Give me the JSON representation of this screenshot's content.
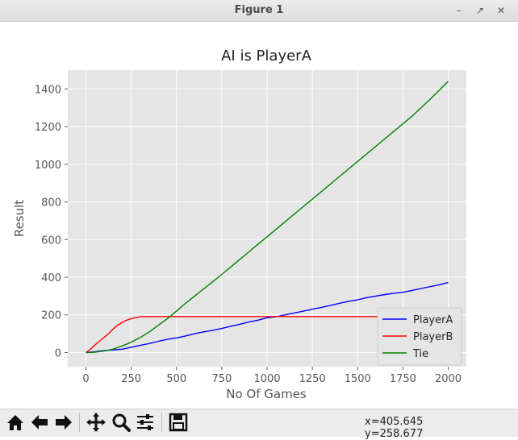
{
  "window": {
    "title": "Figure 1"
  },
  "toolbar": {
    "x_readout": "x=405.645",
    "y_readout": "y=258.677"
  },
  "chart_data": {
    "type": "line",
    "title": "AI is PlayerA",
    "xlabel": "No Of Games",
    "ylabel": "Result",
    "xlim": [
      -100,
      2100
    ],
    "ylim": [
      -75,
      1500
    ],
    "xticks": [
      0,
      250,
      500,
      750,
      1000,
      1250,
      1500,
      1750,
      2000
    ],
    "yticks": [
      0,
      200,
      400,
      600,
      800,
      1000,
      1200,
      1400
    ],
    "grid": true,
    "background": "#e5e5e5",
    "legend_position": "lower-right",
    "series": [
      {
        "name": "PlayerA",
        "color": "#0000ff",
        "x": [
          0,
          50,
          100,
          150,
          200,
          250,
          300,
          350,
          400,
          450,
          500,
          550,
          600,
          650,
          700,
          750,
          800,
          850,
          900,
          950,
          1000,
          1050,
          1100,
          1150,
          1200,
          1250,
          1300,
          1350,
          1400,
          1450,
          1500,
          1550,
          1600,
          1650,
          1700,
          1750,
          1800,
          1850,
          1900,
          1950,
          2000
        ],
        "y": [
          0,
          4,
          10,
          14,
          18,
          28,
          38,
          48,
          60,
          70,
          78,
          88,
          100,
          110,
          118,
          128,
          140,
          150,
          162,
          172,
          185,
          190,
          200,
          210,
          220,
          230,
          240,
          250,
          262,
          272,
          280,
          292,
          300,
          308,
          315,
          320,
          330,
          340,
          350,
          360,
          372
        ]
      },
      {
        "name": "PlayerB",
        "color": "#ff0000",
        "x": [
          0,
          25,
          50,
          75,
          100,
          125,
          150,
          175,
          200,
          225,
          250,
          275,
          300,
          350,
          400,
          500,
          750,
          1000,
          1250,
          1500,
          1750,
          2000
        ],
        "y": [
          0,
          18,
          40,
          60,
          80,
          100,
          125,
          145,
          160,
          172,
          180,
          186,
          190,
          191,
          191,
          191,
          191,
          191,
          191,
          191,
          191,
          191
        ]
      },
      {
        "name": "Tie",
        "color": "#008000",
        "x": [
          0,
          50,
          100,
          150,
          200,
          250,
          300,
          350,
          400,
          450,
          500,
          550,
          600,
          650,
          700,
          750,
          800,
          850,
          900,
          950,
          1000,
          1100,
          1200,
          1300,
          1400,
          1500,
          1600,
          1700,
          1800,
          1900,
          2000
        ],
        "y": [
          0,
          2,
          8,
          18,
          35,
          55,
          80,
          110,
          145,
          180,
          220,
          262,
          300,
          338,
          376,
          415,
          455,
          495,
          535,
          575,
          615,
          695,
          775,
          855,
          935,
          1015,
          1095,
          1175,
          1255,
          1345,
          1440
        ]
      }
    ]
  }
}
